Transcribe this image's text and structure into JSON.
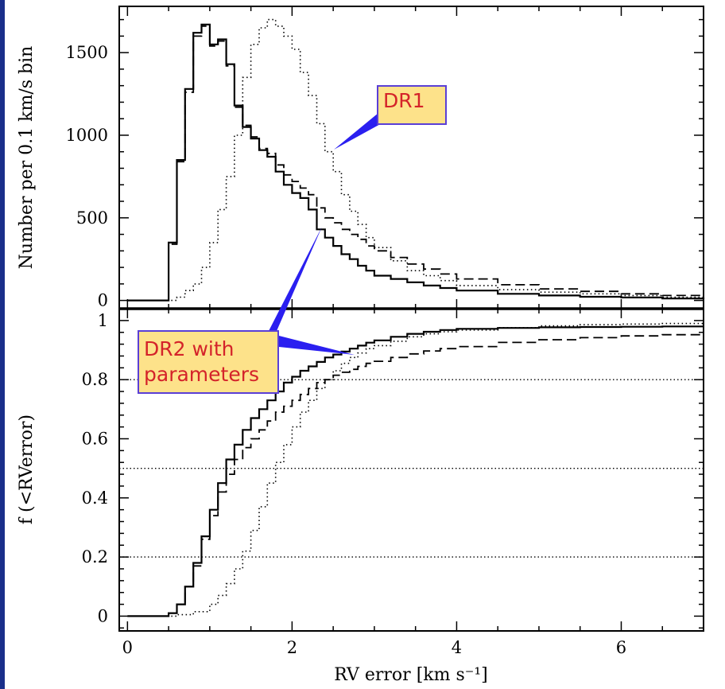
{
  "chart_data": [
    {
      "panel": "top",
      "type": "step",
      "ylabel": "Number per 0.1 km/s bin",
      "xlim": [
        -0.1,
        7
      ],
      "ylim": [
        -50,
        1780
      ],
      "yticks": [
        0,
        500,
        1000,
        1500
      ],
      "ytick_labels": [
        "0",
        "500",
        "1000",
        "1500"
      ],
      "series": [
        {
          "name": "DR2 with parameters",
          "style": "solid",
          "x": [
            0.0,
            0.1,
            0.2,
            0.3,
            0.4,
            0.5,
            0.6,
            0.7,
            0.8,
            0.9,
            1.0,
            1.1,
            1.2,
            1.3,
            1.4,
            1.5,
            1.6,
            1.7,
            1.8,
            1.9,
            2.0,
            2.1,
            2.2,
            2.3,
            2.4,
            2.5,
            2.6,
            2.7,
            2.8,
            2.9,
            3.0,
            3.2,
            3.4,
            3.6,
            3.8,
            4.0,
            4.5,
            5.0,
            5.5,
            6.0,
            6.5,
            7.0
          ],
          "y": [
            0,
            0,
            0,
            0,
            0,
            350,
            850,
            1280,
            1620,
            1670,
            1550,
            1580,
            1430,
            1180,
            1050,
            980,
            910,
            870,
            780,
            700,
            650,
            620,
            550,
            430,
            380,
            330,
            280,
            250,
            210,
            180,
            150,
            130,
            110,
            90,
            75,
            60,
            40,
            30,
            22,
            18,
            12,
            8
          ]
        },
        {
          "name": "dashed",
          "style": "dashed",
          "x": [
            0.0,
            0.1,
            0.2,
            0.3,
            0.4,
            0.5,
            0.6,
            0.7,
            0.8,
            0.9,
            1.0,
            1.1,
            1.2,
            1.3,
            1.4,
            1.5,
            1.6,
            1.7,
            1.8,
            1.9,
            2.0,
            2.1,
            2.2,
            2.3,
            2.4,
            2.5,
            2.6,
            2.7,
            2.8,
            2.9,
            3.0,
            3.2,
            3.4,
            3.6,
            3.8,
            4.0,
            4.5,
            5.0,
            5.5,
            6.0,
            6.5,
            7.0
          ],
          "y": [
            0,
            0,
            0,
            0,
            0,
            340,
            840,
            1260,
            1600,
            1660,
            1540,
            1570,
            1420,
            1170,
            1060,
            990,
            920,
            890,
            820,
            760,
            720,
            680,
            640,
            560,
            500,
            470,
            430,
            400,
            370,
            330,
            300,
            260,
            220,
            190,
            160,
            130,
            95,
            70,
            55,
            40,
            30,
            20
          ]
        },
        {
          "name": "DR1",
          "style": "dotted",
          "x": [
            0.0,
            0.2,
            0.4,
            0.6,
            0.7,
            0.8,
            0.9,
            1.0,
            1.1,
            1.2,
            1.3,
            1.4,
            1.5,
            1.6,
            1.7,
            1.8,
            1.9,
            2.0,
            2.1,
            2.2,
            2.3,
            2.4,
            2.5,
            2.6,
            2.7,
            2.8,
            2.9,
            3.0,
            3.2,
            3.4,
            3.6,
            3.8,
            4.0,
            4.5,
            5.0,
            5.5,
            6.0,
            6.5,
            7.0
          ],
          "y": [
            0,
            0,
            0,
            20,
            60,
            100,
            200,
            350,
            550,
            750,
            1000,
            1350,
            1550,
            1650,
            1700,
            1660,
            1600,
            1520,
            1380,
            1240,
            1070,
            900,
            780,
            640,
            540,
            460,
            380,
            320,
            240,
            180,
            150,
            120,
            90,
            65,
            50,
            40,
            30,
            20,
            15
          ]
        }
      ]
    },
    {
      "panel": "bottom",
      "type": "step",
      "xlabel": "RV error [km s⁻¹]",
      "ylabel": "f (<RVerror)",
      "xlim": [
        -0.1,
        7
      ],
      "ylim": [
        -0.05,
        1.04
      ],
      "xticks": [
        0,
        2,
        4,
        6
      ],
      "xtick_labels": [
        "0",
        "2",
        "4",
        "6"
      ],
      "yticks": [
        0,
        0.2,
        0.4,
        0.6,
        0.8,
        1
      ],
      "ytick_labels": [
        "0",
        "0.2",
        "0.4",
        "0.6",
        "0.8",
        "1"
      ],
      "reference_lines": [
        0.2,
        0.5,
        0.8
      ],
      "series": [
        {
          "name": "DR2 with parameters",
          "style": "solid",
          "x": [
            0.0,
            0.5,
            0.6,
            0.7,
            0.8,
            0.9,
            1.0,
            1.1,
            1.2,
            1.3,
            1.4,
            1.5,
            1.6,
            1.7,
            1.8,
            1.9,
            2.0,
            2.1,
            2.2,
            2.3,
            2.4,
            2.5,
            2.6,
            2.7,
            2.8,
            2.9,
            3.0,
            3.2,
            3.4,
            3.6,
            3.8,
            4.0,
            4.5,
            5.0,
            5.5,
            6.0,
            6.5,
            7.0
          ],
          "y": [
            0,
            0.01,
            0.04,
            0.1,
            0.18,
            0.27,
            0.36,
            0.45,
            0.53,
            0.58,
            0.63,
            0.67,
            0.7,
            0.73,
            0.76,
            0.79,
            0.81,
            0.83,
            0.845,
            0.86,
            0.875,
            0.885,
            0.895,
            0.905,
            0.915,
            0.925,
            0.933,
            0.945,
            0.955,
            0.962,
            0.968,
            0.972,
            0.975,
            0.977,
            0.978,
            0.979,
            0.98,
            0.98
          ]
        },
        {
          "name": "dashed",
          "style": "dashed",
          "x": [
            0.0,
            0.5,
            0.6,
            0.7,
            0.8,
            0.9,
            1.0,
            1.1,
            1.2,
            1.3,
            1.4,
            1.5,
            1.6,
            1.7,
            1.8,
            1.9,
            2.0,
            2.1,
            2.2,
            2.3,
            2.4,
            2.5,
            2.6,
            2.7,
            2.8,
            2.9,
            3.0,
            3.2,
            3.4,
            3.6,
            3.8,
            4.0,
            4.5,
            5.0,
            5.5,
            6.0,
            6.5,
            7.0
          ],
          "y": [
            0,
            0.01,
            0.04,
            0.1,
            0.17,
            0.26,
            0.34,
            0.42,
            0.48,
            0.53,
            0.57,
            0.6,
            0.63,
            0.66,
            0.69,
            0.71,
            0.73,
            0.75,
            0.77,
            0.79,
            0.8,
            0.815,
            0.825,
            0.835,
            0.845,
            0.855,
            0.862,
            0.875,
            0.887,
            0.897,
            0.905,
            0.912,
            0.926,
            0.935,
            0.942,
            0.948,
            0.952,
            0.957
          ]
        },
        {
          "name": "DR1",
          "style": "dotted",
          "x": [
            0.0,
            0.6,
            0.8,
            1.0,
            1.1,
            1.2,
            1.3,
            1.4,
            1.5,
            1.6,
            1.7,
            1.8,
            1.9,
            2.0,
            2.1,
            2.2,
            2.3,
            2.4,
            2.5,
            2.6,
            2.7,
            2.8,
            2.9,
            3.0,
            3.2,
            3.4,
            3.6,
            3.8,
            4.0,
            4.5,
            5.0,
            5.5,
            6.0,
            6.5,
            7.0
          ],
          "y": [
            0,
            0.005,
            0.015,
            0.04,
            0.07,
            0.11,
            0.16,
            0.22,
            0.29,
            0.37,
            0.45,
            0.52,
            0.58,
            0.64,
            0.69,
            0.73,
            0.77,
            0.8,
            0.83,
            0.855,
            0.875,
            0.89,
            0.905,
            0.915,
            0.93,
            0.945,
            0.955,
            0.962,
            0.968,
            0.976,
            0.982,
            0.986,
            0.988,
            0.99,
            0.99
          ]
        }
      ]
    }
  ],
  "annotations": {
    "dr1_label": "DR1",
    "dr2_label_line1": "DR2 with",
    "dr2_label_line2": "parameters"
  },
  "colors": {
    "callout_fill": "#fde28a",
    "callout_border": "#5a3fd6",
    "callout_text": "#d4232a",
    "pointer": "#2a1ff0",
    "frame": "#000000",
    "left_strip": "#1a2f8a"
  }
}
